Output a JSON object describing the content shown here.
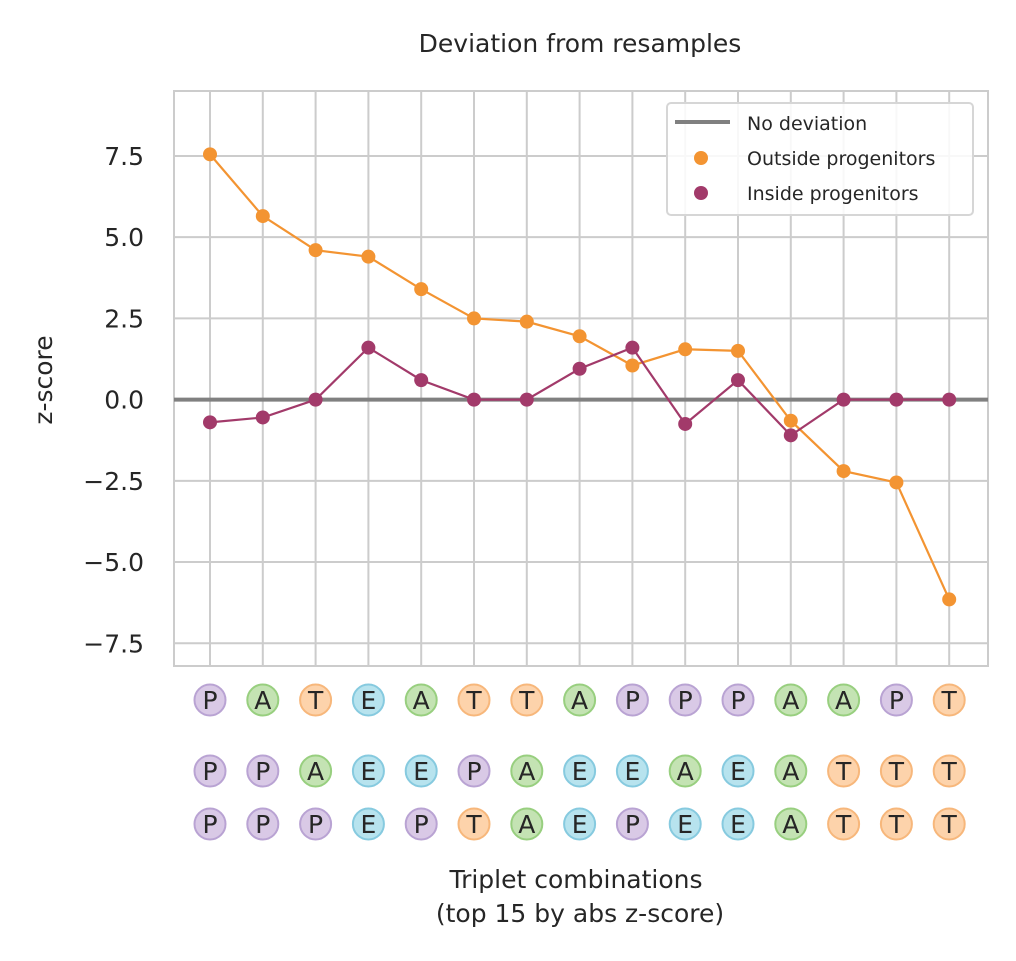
{
  "chart_data": {
    "type": "line",
    "title": "Deviation from resamples",
    "ylabel": "z-score",
    "xlabel_lines": [
      "Triplet combinations",
      "(top 15 by abs z-score)"
    ],
    "ylim": [
      -8.2,
      9.5
    ],
    "yticks": [
      7.5,
      5.0,
      2.5,
      0.0,
      -2.5,
      -5.0,
      -7.5
    ],
    "ytick_labels": [
      "7.5",
      "5.0",
      "2.5",
      "0.0",
      "−2.5",
      "−5.0",
      "−7.5"
    ],
    "grid": true,
    "legend_position": "top-right",
    "baseline": {
      "name": "No deviation",
      "value": 0,
      "color": "#808080"
    },
    "series": [
      {
        "name": "Outside progenitors",
        "color": "#f39432",
        "values": [
          7.55,
          5.65,
          4.6,
          4.4,
          3.4,
          2.5,
          2.4,
          1.95,
          1.05,
          1.55,
          1.5,
          -0.65,
          -2.2,
          -2.55,
          -6.15
        ]
      },
      {
        "name": "Inside progenitors",
        "color": "#a23a6a",
        "values": [
          -0.7,
          -0.55,
          0.0,
          1.6,
          0.6,
          0.0,
          0.0,
          0.95,
          1.6,
          -0.75,
          0.6,
          -1.1,
          0.0,
          0.0,
          0.0
        ]
      }
    ],
    "triplets": [
      [
        "P",
        "P",
        "P"
      ],
      [
        "A",
        "P",
        "P"
      ],
      [
        "T",
        "A",
        "P"
      ],
      [
        "E",
        "E",
        "E"
      ],
      [
        "A",
        "E",
        "P"
      ],
      [
        "T",
        "P",
        "T"
      ],
      [
        "T",
        "A",
        "A"
      ],
      [
        "A",
        "E",
        "E"
      ],
      [
        "P",
        "E",
        "P"
      ],
      [
        "P",
        "A",
        "E"
      ],
      [
        "P",
        "E",
        "E"
      ],
      [
        "A",
        "A",
        "A"
      ],
      [
        "A",
        "T",
        "T"
      ],
      [
        "P",
        "T",
        "T"
      ],
      [
        "T",
        "T",
        "T"
      ]
    ],
    "letter_colors": {
      "P": {
        "fill": "#d9c9e6",
        "stroke": "#b9a3d3"
      },
      "A": {
        "fill": "#c4e3b3",
        "stroke": "#98cf7f"
      },
      "T": {
        "fill": "#fdd3ab",
        "stroke": "#f7b77b"
      },
      "E": {
        "fill": "#b7e3ee",
        "stroke": "#86cadf"
      }
    }
  }
}
